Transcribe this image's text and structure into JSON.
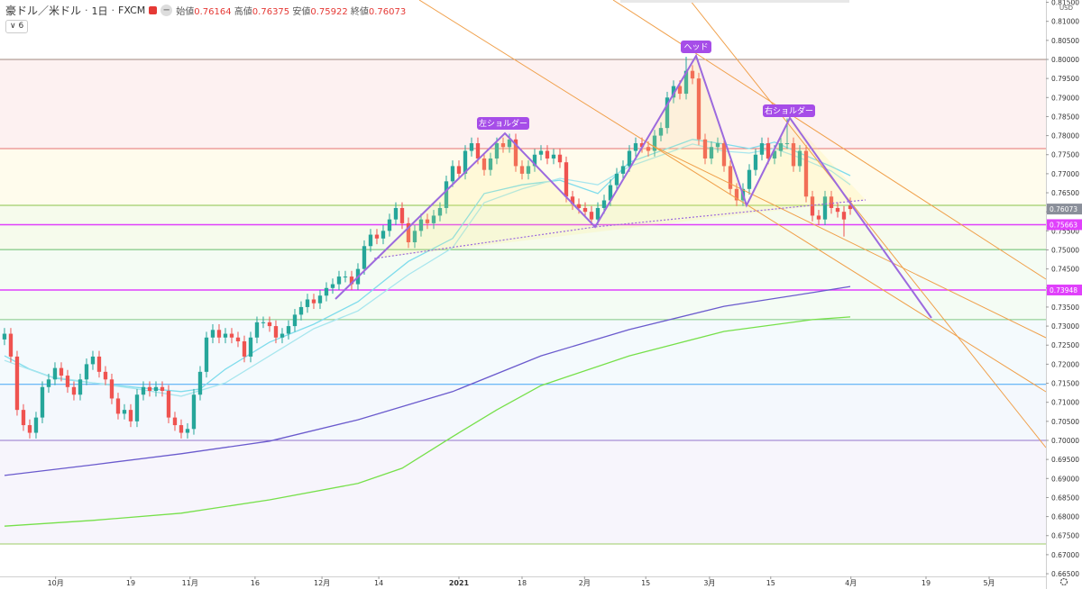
{
  "header": {
    "symbol": "豪ドル／米ドル",
    "interval": "1日",
    "source": "FXCM",
    "open_label": "始値",
    "high_label": "高値",
    "low_label": "安値",
    "close_label": "終値",
    "indicator_count": 6
  },
  "chart_data": {
    "type": "candlestick",
    "currency": "USD",
    "up_color": "#26a69a",
    "down_color": "#ef5350",
    "grid": false,
    "xlim": [
      -0.71,
      165
    ],
    "ylim": [
      0.6643,
      0.8156
    ],
    "xticks": [
      {
        "value": 8.1,
        "label": "10月"
      },
      {
        "value": 20,
        "label": "19"
      },
      {
        "value": 29.4,
        "label": "11月"
      },
      {
        "value": 39.7,
        "label": "16"
      },
      {
        "value": 50.3,
        "label": "12月"
      },
      {
        "value": 59.3,
        "label": "14"
      },
      {
        "value": 72,
        "label": "2021"
      },
      {
        "value": 82,
        "label": "18"
      },
      {
        "value": 91.9,
        "label": "2月"
      },
      {
        "value": 101.6,
        "label": "15"
      },
      {
        "value": 111.7,
        "label": "3月"
      },
      {
        "value": 121.4,
        "label": "15"
      },
      {
        "value": 134.1,
        "label": "4月"
      },
      {
        "value": 146,
        "label": "19"
      },
      {
        "value": 156,
        "label": "5月"
      }
    ],
    "yticks": [
      {
        "value": 0.665,
        "label": "0.66500"
      },
      {
        "value": 0.67,
        "label": "0.67000"
      },
      {
        "value": 0.675,
        "label": "0.67500"
      },
      {
        "value": 0.68,
        "label": "0.68000"
      },
      {
        "value": 0.685,
        "label": "0.68500"
      },
      {
        "value": 0.69,
        "label": "0.69000"
      },
      {
        "value": 0.695,
        "label": "0.69500"
      },
      {
        "value": 0.7,
        "label": "0.70000"
      },
      {
        "value": 0.705,
        "label": "0.70500"
      },
      {
        "value": 0.71,
        "label": "0.71000"
      },
      {
        "value": 0.715,
        "label": "0.71500"
      },
      {
        "value": 0.72,
        "label": "0.72000"
      },
      {
        "value": 0.725,
        "label": "0.72500"
      },
      {
        "value": 0.73,
        "label": "0.73000"
      },
      {
        "value": 0.735,
        "label": "0.73500"
      },
      {
        "value": 0.74,
        "label": "0.74000"
      },
      {
        "value": 0.745,
        "label": "0.74500"
      },
      {
        "value": 0.75,
        "label": "0.75000"
      },
      {
        "value": 0.755,
        "label": "0.75500"
      },
      {
        "value": 0.76,
        "label": "0.76000"
      },
      {
        "value": 0.765,
        "label": "0.76500"
      },
      {
        "value": 0.77,
        "label": "0.77000"
      },
      {
        "value": 0.775,
        "label": "0.77500"
      },
      {
        "value": 0.78,
        "label": "0.78000"
      },
      {
        "value": 0.785,
        "label": "0.78500"
      },
      {
        "value": 0.79,
        "label": "0.79000"
      },
      {
        "value": 0.795,
        "label": "0.79500"
      },
      {
        "value": 0.8,
        "label": "0.80000"
      },
      {
        "value": 0.805,
        "label": "0.80500"
      },
      {
        "value": 0.81,
        "label": "0.81000"
      },
      {
        "value": 0.815,
        "label": "0.81500"
      }
    ],
    "levels": [
      {
        "value": 0.8,
        "color": "#a1887f",
        "fill": "rgba(239,154,154,0.14)"
      },
      {
        "value": 0.7766,
        "color": "#e57373",
        "fill": "rgba(255,236,140,0.16)"
      },
      {
        "value": 0.7617,
        "color": "#8bc34a",
        "fill": "rgba(205,232,150,0.18)"
      },
      {
        "value": 0.7501,
        "color": "#66bb6a",
        "fill": "rgba(180,232,180,0.14)"
      },
      {
        "value": 0.7317,
        "color": "#81c784",
        "fill": "rgba(185,222,242,0.16)"
      },
      {
        "value": 0.7147,
        "color": "#42a5f5",
        "fill": "rgba(200,220,246,0.2)"
      },
      {
        "value": 0.7,
        "color": "#9575cd",
        "fill": "rgba(214,204,240,0.2)"
      },
      {
        "value": 0.6728,
        "color": "#9ccc65"
      }
    ],
    "price_lines": [
      {
        "value": 0.75663,
        "color": "#e040fb"
      },
      {
        "value": 0.73948,
        "color": "#e040fb"
      }
    ],
    "annotations": [
      "左ショルダー",
      "ヘッド",
      "右ショルダー"
    ],
    "moving_averages": [
      {
        "color": "#6a5acd",
        "x": [
          0,
          14,
          28,
          42,
          56,
          71,
          85,
          99,
          114,
          128,
          134
        ],
        "values": [
          0.6908,
          0.6936,
          0.6965,
          0.6998,
          0.7054,
          0.7128,
          0.7222,
          0.7291,
          0.7352,
          0.7388,
          0.7404
        ]
      },
      {
        "color": "#76e04a",
        "x": [
          0,
          14,
          28,
          42,
          56,
          63,
          71,
          78,
          85,
          99,
          114,
          128,
          134
        ],
        "values": [
          0.6775,
          0.679,
          0.6809,
          0.6844,
          0.6887,
          0.6927,
          0.701,
          0.708,
          0.7144,
          0.7222,
          0.7286,
          0.7317,
          0.7324
        ]
      },
      {
        "color": "#7fdcec",
        "x": [
          0,
          4,
          8,
          14,
          21,
          28,
          31,
          35,
          42,
          49,
          56,
          64,
          71,
          76,
          82,
          88,
          94,
          99,
          105,
          109,
          114,
          118,
          122,
          126,
          131,
          134
        ],
        "values": [
          0.7222,
          0.7187,
          0.7163,
          0.7151,
          0.7139,
          0.7128,
          0.7135,
          0.7187,
          0.7258,
          0.7305,
          0.7364,
          0.747,
          0.753,
          0.7648,
          0.7671,
          0.7683,
          0.7648,
          0.773,
          0.7766,
          0.779,
          0.7778,
          0.7766,
          0.7783,
          0.7754,
          0.7719,
          0.7695
        ]
      },
      {
        "color": "#a8e6ee",
        "x": [
          0,
          7,
          14,
          21,
          28,
          35,
          42,
          49,
          56,
          64,
          71,
          76,
          82,
          88,
          94,
          99,
          105,
          109,
          114,
          118,
          122,
          126,
          131,
          134
        ],
        "values": [
          0.721,
          0.7168,
          0.7151,
          0.7135,
          0.7116,
          0.7151,
          0.7222,
          0.7293,
          0.734,
          0.7435,
          0.7506,
          0.7624,
          0.766,
          0.7688,
          0.7671,
          0.7719,
          0.7754,
          0.7778,
          0.7759,
          0.7754,
          0.7766,
          0.7742,
          0.7707,
          0.7671
        ]
      }
    ],
    "candles": [
      [
        0.7265,
        0.7295,
        0.725,
        0.728
      ],
      [
        0.728,
        0.7295,
        0.7205,
        0.722
      ],
      [
        0.722,
        0.7235,
        0.7065,
        0.708
      ],
      [
        0.708,
        0.7095,
        0.7025,
        0.704
      ],
      [
        0.704,
        0.7055,
        0.7005,
        0.702
      ],
      [
        0.702,
        0.7075,
        0.7005,
        0.706
      ],
      [
        0.706,
        0.7155,
        0.7045,
        0.714
      ],
      [
        0.714,
        0.7175,
        0.7125,
        0.716
      ],
      [
        0.716,
        0.7205,
        0.7145,
        0.719
      ],
      [
        0.719,
        0.7205,
        0.7155,
        0.717
      ],
      [
        0.717,
        0.7185,
        0.7125,
        0.714
      ],
      [
        0.714,
        0.7155,
        0.7105,
        0.712
      ],
      [
        0.712,
        0.7175,
        0.7105,
        0.716
      ],
      [
        0.716,
        0.7215,
        0.7145,
        0.72
      ],
      [
        0.72,
        0.7235,
        0.7185,
        0.722
      ],
      [
        0.722,
        0.7235,
        0.7165,
        0.718
      ],
      [
        0.718,
        0.7195,
        0.7145,
        0.716
      ],
      [
        0.716,
        0.7175,
        0.7095,
        0.711
      ],
      [
        0.711,
        0.7125,
        0.7055,
        0.707
      ],
      [
        0.707,
        0.7095,
        0.7055,
        0.708
      ],
      [
        0.708,
        0.7095,
        0.7035,
        0.705
      ],
      [
        0.705,
        0.7135,
        0.7035,
        0.712
      ],
      [
        0.712,
        0.7155,
        0.7105,
        0.714
      ],
      [
        0.714,
        0.7155,
        0.7115,
        0.713
      ],
      [
        0.713,
        0.7155,
        0.7115,
        0.714
      ],
      [
        0.714,
        0.7155,
        0.7115,
        0.713
      ],
      [
        0.713,
        0.7145,
        0.7045,
        0.706
      ],
      [
        0.706,
        0.7075,
        0.7025,
        0.704
      ],
      [
        0.704,
        0.7055,
        0.7005,
        0.702
      ],
      [
        0.702,
        0.7045,
        0.7005,
        0.703
      ],
      [
        0.703,
        0.7135,
        0.7015,
        0.712
      ],
      [
        0.712,
        0.7195,
        0.7105,
        0.718
      ],
      [
        0.718,
        0.7285,
        0.7165,
        0.727
      ],
      [
        0.727,
        0.7305,
        0.7255,
        0.729
      ],
      [
        0.729,
        0.7305,
        0.7255,
        0.727
      ],
      [
        0.727,
        0.7295,
        0.7255,
        0.728
      ],
      [
        0.728,
        0.7295,
        0.7255,
        0.727
      ],
      [
        0.727,
        0.7285,
        0.7245,
        0.726
      ],
      [
        0.726,
        0.7275,
        0.7205,
        0.722
      ],
      [
        0.722,
        0.7285,
        0.7205,
        0.727
      ],
      [
        0.727,
        0.7325,
        0.7255,
        0.731
      ],
      [
        0.731,
        0.7325,
        0.7295,
        0.731
      ],
      [
        0.731,
        0.7325,
        0.7285,
        0.73
      ],
      [
        0.73,
        0.7315,
        0.7255,
        0.727
      ],
      [
        0.727,
        0.7295,
        0.7255,
        0.728
      ],
      [
        0.728,
        0.7315,
        0.7265,
        0.73
      ],
      [
        0.73,
        0.7345,
        0.7285,
        0.733
      ],
      [
        0.733,
        0.7365,
        0.7315,
        0.735
      ],
      [
        0.735,
        0.7385,
        0.7335,
        0.737
      ],
      [
        0.737,
        0.7385,
        0.7345,
        0.736
      ],
      [
        0.736,
        0.7395,
        0.7345,
        0.738
      ],
      [
        0.738,
        0.7415,
        0.7365,
        0.74
      ],
      [
        0.74,
        0.7425,
        0.7385,
        0.741
      ],
      [
        0.741,
        0.7445,
        0.7395,
        0.743
      ],
      [
        0.743,
        0.7445,
        0.7415,
        0.743
      ],
      [
        0.743,
        0.7445,
        0.7395,
        0.741
      ],
      [
        0.741,
        0.7465,
        0.7395,
        0.745
      ],
      [
        0.745,
        0.7525,
        0.7435,
        0.751
      ],
      [
        0.751,
        0.7555,
        0.7495,
        0.754
      ],
      [
        0.754,
        0.7555,
        0.7515,
        0.753
      ],
      [
        0.753,
        0.7565,
        0.7515,
        0.755
      ],
      [
        0.755,
        0.7595,
        0.7535,
        0.758
      ],
      [
        0.758,
        0.7625,
        0.7565,
        0.761
      ],
      [
        0.761,
        0.7625,
        0.7555,
        0.757
      ],
      [
        0.757,
        0.7585,
        0.7505,
        0.752
      ],
      [
        0.752,
        0.7565,
        0.7505,
        0.755
      ],
      [
        0.755,
        0.7595,
        0.7535,
        0.758
      ],
      [
        0.758,
        0.7595,
        0.7555,
        0.757
      ],
      [
        0.757,
        0.7605,
        0.7555,
        0.759
      ],
      [
        0.759,
        0.7625,
        0.7575,
        0.761
      ],
      [
        0.761,
        0.7695,
        0.7595,
        0.768
      ],
      [
        0.768,
        0.7735,
        0.7665,
        0.772
      ],
      [
        0.772,
        0.7735,
        0.7685,
        0.77
      ],
      [
        0.77,
        0.7775,
        0.7685,
        0.776
      ],
      [
        0.776,
        0.7795,
        0.7745,
        0.778
      ],
      [
        0.778,
        0.7795,
        0.7725,
        0.774
      ],
      [
        0.774,
        0.7755,
        0.7695,
        0.771
      ],
      [
        0.771,
        0.7755,
        0.7695,
        0.774
      ],
      [
        0.774,
        0.7795,
        0.7725,
        0.778
      ],
      [
        0.778,
        0.7795,
        0.7755,
        0.777
      ],
      [
        0.777,
        0.7805,
        0.7755,
        0.779
      ],
      [
        0.779,
        0.7805,
        0.7705,
        0.772
      ],
      [
        0.772,
        0.7735,
        0.7685,
        0.77
      ],
      [
        0.77,
        0.7735,
        0.7685,
        0.772
      ],
      [
        0.772,
        0.7765,
        0.7705,
        0.775
      ],
      [
        0.775,
        0.7775,
        0.7735,
        0.776
      ],
      [
        0.776,
        0.7775,
        0.7725,
        0.774
      ],
      [
        0.774,
        0.7765,
        0.7725,
        0.775
      ],
      [
        0.775,
        0.7765,
        0.7715,
        0.773
      ],
      [
        0.773,
        0.7745,
        0.7625,
        0.764
      ],
      [
        0.764,
        0.7655,
        0.7605,
        0.762
      ],
      [
        0.762,
        0.7635,
        0.7595,
        0.761
      ],
      [
        0.761,
        0.7625,
        0.7585,
        0.76
      ],
      [
        0.76,
        0.7615,
        0.7565,
        0.758
      ],
      [
        0.758,
        0.7625,
        0.7565,
        0.761
      ],
      [
        0.761,
        0.7645,
        0.7595,
        0.763
      ],
      [
        0.763,
        0.7685,
        0.7615,
        0.767
      ],
      [
        0.767,
        0.7715,
        0.7655,
        0.77
      ],
      [
        0.77,
        0.7735,
        0.7685,
        0.772
      ],
      [
        0.772,
        0.7775,
        0.7705,
        0.776
      ],
      [
        0.776,
        0.7795,
        0.7745,
        0.778
      ],
      [
        0.778,
        0.7795,
        0.7755,
        0.777
      ],
      [
        0.777,
        0.7785,
        0.7745,
        0.776
      ],
      [
        0.776,
        0.7815,
        0.7745,
        0.78
      ],
      [
        0.78,
        0.7835,
        0.7785,
        0.782
      ],
      [
        0.782,
        0.7915,
        0.7805,
        0.79
      ],
      [
        0.79,
        0.7945,
        0.7885,
        0.793
      ],
      [
        0.793,
        0.7945,
        0.7895,
        0.791
      ],
      [
        0.791,
        0.8007,
        0.7895,
        0.797
      ],
      [
        0.797,
        0.7985,
        0.7935,
        0.795
      ],
      [
        0.795,
        0.7965,
        0.7775,
        0.779
      ],
      [
        0.779,
        0.7805,
        0.7725,
        0.774
      ],
      [
        0.774,
        0.7785,
        0.7725,
        0.777
      ],
      [
        0.777,
        0.7795,
        0.7755,
        0.778
      ],
      [
        0.778,
        0.7795,
        0.7705,
        0.772
      ],
      [
        0.772,
        0.7735,
        0.7645,
        0.766
      ],
      [
        0.766,
        0.7675,
        0.7615,
        0.763
      ],
      [
        0.763,
        0.7675,
        0.7615,
        0.766
      ],
      [
        0.766,
        0.7725,
        0.7645,
        0.771
      ],
      [
        0.771,
        0.7765,
        0.7695,
        0.775
      ],
      [
        0.775,
        0.7795,
        0.7735,
        0.778
      ],
      [
        0.778,
        0.7795,
        0.7725,
        0.774
      ],
      [
        0.774,
        0.7775,
        0.7725,
        0.776
      ],
      [
        0.776,
        0.7795,
        0.7745,
        0.778
      ],
      [
        0.778,
        0.7845,
        0.7765,
        0.778
      ],
      [
        0.778,
        0.7795,
        0.7705,
        0.772
      ],
      [
        0.772,
        0.7775,
        0.7705,
        0.776
      ],
      [
        0.776,
        0.7775,
        0.7625,
        0.764
      ],
      [
        0.764,
        0.7655,
        0.7575,
        0.759
      ],
      [
        0.759,
        0.7605,
        0.7565,
        0.758
      ],
      [
        0.758,
        0.7655,
        0.7565,
        0.764
      ],
      [
        0.764,
        0.7655,
        0.7595,
        0.761
      ],
      [
        0.761,
        0.7625,
        0.7585,
        0.76
      ],
      [
        0.76,
        0.7615,
        0.7535,
        0.758
      ],
      [
        0.76164,
        0.76375,
        0.75922,
        0.76073
      ]
    ]
  }
}
